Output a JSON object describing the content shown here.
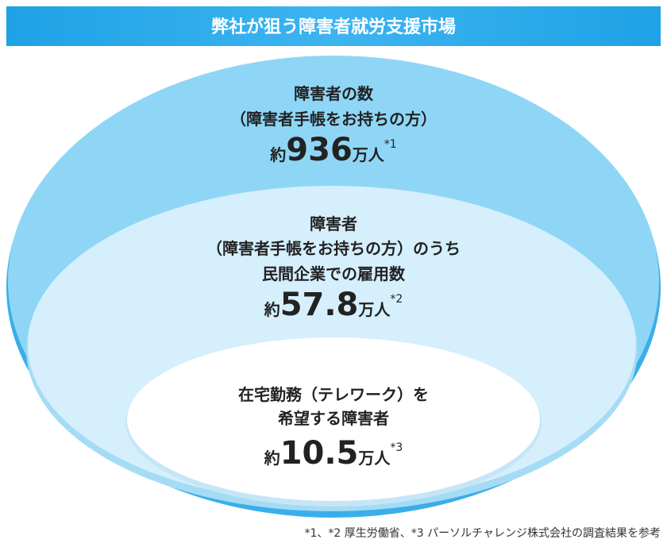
{
  "header": {
    "title": "弊社が狙う障害者就労支援市場"
  },
  "nodes": [
    {
      "lines": [
        "障害者の数",
        "（障害者手帳をお持ちの方）"
      ],
      "prefix": "約",
      "value": "936",
      "unit": "万人",
      "note": "*1"
    },
    {
      "lines": [
        "障害者",
        "（障害者手帳をお持ちの方）のうち",
        "民間企業での雇用数"
      ],
      "prefix": "約",
      "value": "57.8",
      "unit": "万人",
      "note": "*2"
    },
    {
      "lines": [
        "在宅勤務（テレワーク）を",
        "希望する障害者"
      ],
      "prefix": "約",
      "value": "10.5",
      "unit": "万人",
      "note": "*3"
    }
  ],
  "footnote": "*1、*2 厚生労働省、*3 パーソルチャレンジ株式会社の調査結果を参考"
}
